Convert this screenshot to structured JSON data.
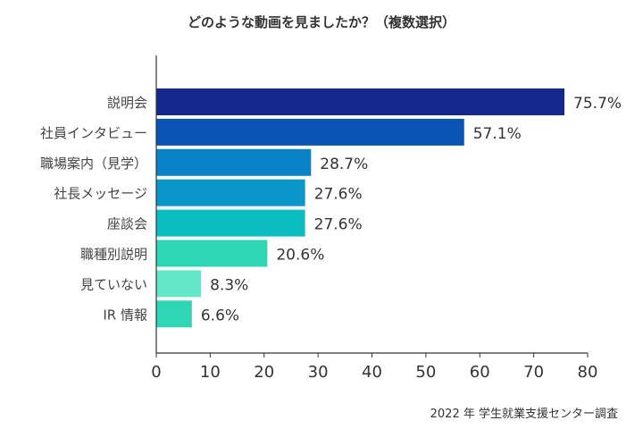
{
  "chart_data": {
    "type": "bar",
    "orientation": "horizontal",
    "title": "どのような動画を見ましたか？（複数選択）",
    "categories": [
      "説明会",
      "社員インタビュー",
      "職場案内（見学）",
      "社長メッセージ",
      "座談会",
      "職種別説明",
      "見ていない",
      "IR 情報"
    ],
    "values": [
      75.7,
      57.1,
      28.7,
      27.6,
      27.6,
      20.6,
      8.3,
      6.6
    ],
    "value_labels": [
      "75.7%",
      "57.1%",
      "28.7%",
      "27.6%",
      "27.6%",
      "20.6%",
      "8.3%",
      "6.6%"
    ],
    "xlim": [
      0,
      80
    ],
    "xticks": [
      0,
      10,
      20,
      30,
      40,
      50,
      60,
      70,
      80
    ],
    "xlabel": "",
    "ylabel": "",
    "grid": false,
    "legend": "none",
    "bar_colors": [
      "#14288c",
      "#0a55b4",
      "#0a82c8",
      "#0a96c8",
      "#0abec0",
      "#2ed6b6",
      "#64e6c8",
      "#2ed6b6"
    ],
    "source": "2022 年 学生就業支援センター調査"
  }
}
